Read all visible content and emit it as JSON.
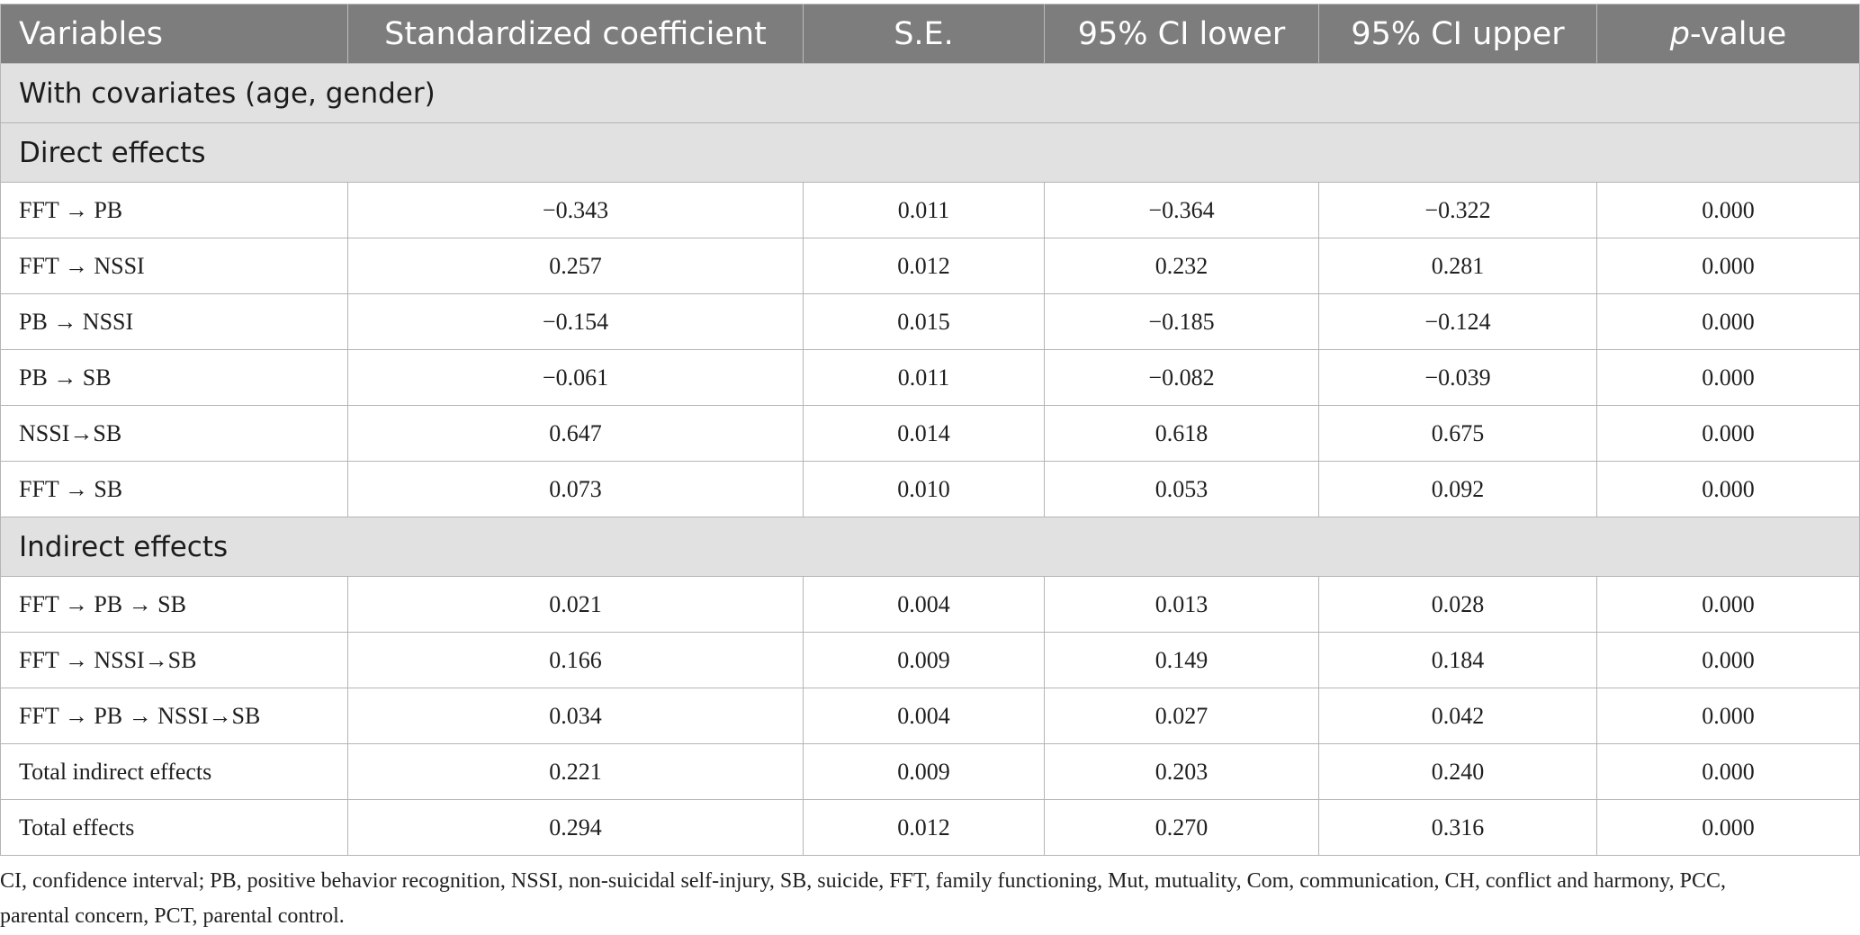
{
  "table": {
    "headers": {
      "variables": "Variables",
      "coef": "Standardized coefficient",
      "se": "S.E.",
      "ci_lower": "95% CI lower",
      "ci_upper": "95% CI upper",
      "p_prefix": "p",
      "p_suffix": "-value"
    },
    "sections": [
      {
        "title": "With covariates (age, gender)",
        "rows": []
      },
      {
        "title": "Direct effects",
        "rows": [
          {
            "label": "FFT → PB",
            "coef": "−0.343",
            "se": "0.011",
            "lower": "−0.364",
            "upper": "−0.322",
            "p": "0.000"
          },
          {
            "label": "FFT → NSSI",
            "coef": "0.257",
            "se": "0.012",
            "lower": "0.232",
            "upper": "0.281",
            "p": "0.000"
          },
          {
            "label": "PB → NSSI",
            "coef": "−0.154",
            "se": "0.015",
            "lower": "−0.185",
            "upper": "−0.124",
            "p": "0.000"
          },
          {
            "label": "PB → SB",
            "coef": "−0.061",
            "se": "0.011",
            "lower": "−0.082",
            "upper": "−0.039",
            "p": "0.000"
          },
          {
            "label": "NSSI→SB",
            "coef": "0.647",
            "se": "0.014",
            "lower": "0.618",
            "upper": "0.675",
            "p": "0.000"
          },
          {
            "label": "FFT → SB",
            "coef": "0.073",
            "se": "0.010",
            "lower": "0.053",
            "upper": "0.092",
            "p": "0.000"
          }
        ]
      },
      {
        "title": "Indirect effects",
        "rows": [
          {
            "label": "FFT → PB → SB",
            "coef": "0.021",
            "se": "0.004",
            "lower": "0.013",
            "upper": "0.028",
            "p": "0.000"
          },
          {
            "label": "FFT → NSSI→SB",
            "coef": "0.166",
            "se": "0.009",
            "lower": "0.149",
            "upper": "0.184",
            "p": "0.000"
          },
          {
            "label": "FFT → PB → NSSI→SB",
            "coef": "0.034",
            "se": "0.004",
            "lower": "0.027",
            "upper": "0.042",
            "p": "0.000"
          },
          {
            "label": "Total indirect effects",
            "coef": "0.221",
            "se": "0.009",
            "lower": "0.203",
            "upper": "0.240",
            "p": "0.000"
          },
          {
            "label": "Total effects",
            "coef": "0.294",
            "se": "0.012",
            "lower": "0.270",
            "upper": "0.316",
            "p": "0.000"
          }
        ]
      }
    ]
  },
  "footnote": "CI, confidence interval; PB, positive behavior recognition, NSSI, non-suicidal self-injury, SB, suicide, FFT, family functioning, Mut, mutuality, Com, communication, CH, conflict and harmony, PCC, parental concern, PCT, parental control.",
  "colors": {
    "header_bg": "#7d7d7d",
    "section_bg": "#e1e1e1",
    "border": "#b5b5b5"
  }
}
